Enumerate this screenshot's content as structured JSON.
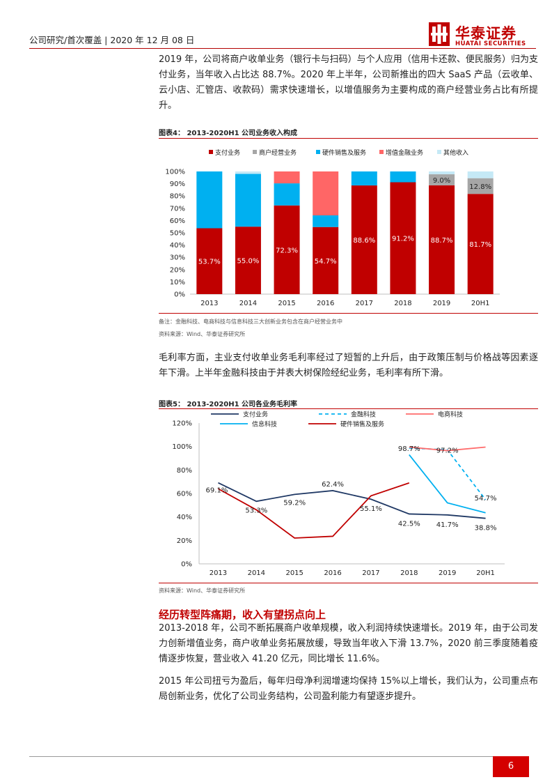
{
  "header": {
    "text": "公司研究/首次覆盖 | 2020 年 12 月 08 日",
    "logo_cn": "华泰证券",
    "logo_en": "HUATAI SECURITIES"
  },
  "paragraphs": {
    "p1": "2019 年，公司将商户收单业务（银行卡与扫码）与个人应用（信用卡还款、便民服务）归为支付业务，当年收入占比达 88.7%。2020 年上半年，公司新推出的四大 SaaS 产品（云收单、云小店、汇管店、收款码）需求快速增长，以增值服务为主要构成的商户经营业务占比有所提升。",
    "p2": "毛利率方面，主业支付收单业务毛利率经过了短暂的上升后，由于政策压制与价格战等因素逐年下滑。上半年金融科技由于并表大树保险经纪业务，毛利率有所下滑。",
    "section_title": "经历转型阵痛期，收入有望拐点向上",
    "p3": "2013-2018 年，公司不断拓展商户收单规模，收入利润持续快速增长。2019 年，由于公司发力创新增值业务，商户收单业务拓展放缓，导致当年收入下滑 13.7%，2020 前三季度随着疫情逐步恢复，营业收入 41.20 亿元，同比增长 11.6%。",
    "p4": "2015 年公司扭亏为盈后，每年归母净利润增速均保持 15%以上增长，我们认为，公司重点布局创新业务，优化了公司业务结构，公司盈利能力有望逐步提升。"
  },
  "figure4": {
    "title": "图表4：  2013-2020H1 公司业务收入构成",
    "note": "备注：金融科技、电商科技与信息科技三大创新业务包含在商户经营业务中",
    "source": "资料来源：Wind、华泰证券研究所"
  },
  "figure5": {
    "title": "图表5：  2013-2020H1 公司各业务毛利率",
    "source": "资料来源：Wind、华泰证券研究所"
  },
  "chart_data": [
    {
      "type": "bar",
      "stacked": true,
      "categories": [
        "2013",
        "2014",
        "2015",
        "2016",
        "2017",
        "2018",
        "2019",
        "20H1"
      ],
      "ylim": [
        0,
        100
      ],
      "yticks": [
        "0%",
        "10%",
        "20%",
        "30%",
        "40%",
        "50%",
        "60%",
        "70%",
        "80%",
        "90%",
        "100%"
      ],
      "legend_position": "top",
      "series": [
        {
          "name": "支付业务",
          "color": "#c00000",
          "values": [
            53.7,
            55.0,
            72.3,
            54.7,
            88.6,
            91.2,
            88.7,
            81.7
          ],
          "labels": [
            "53.7%",
            "55.0%",
            "72.3%",
            "54.7%",
            "88.6%",
            "91.2%",
            "88.7%",
            "81.7%"
          ]
        },
        {
          "name": "商户经营业务",
          "color": "#a6a6a6",
          "values": [
            0,
            0,
            0,
            0,
            0,
            0,
            9.0,
            12.8
          ],
          "labels": [
            "",
            "",
            "",
            "",
            "",
            "",
            "9.0%",
            "12.8%"
          ]
        },
        {
          "name": "硬件销售及服务",
          "color": "#00b0f0",
          "values": [
            46.3,
            43.0,
            18.0,
            9.5,
            11.4,
            8.8,
            0,
            0
          ]
        },
        {
          "name": "增值金融业务",
          "color": "#ff6666",
          "values": [
            0,
            0,
            9.7,
            35.8,
            0,
            0,
            0,
            0
          ]
        },
        {
          "name": "其他收入",
          "color": "#c5e9f6",
          "values": [
            0,
            2.0,
            0,
            0,
            0,
            0,
            2.3,
            5.5
          ]
        }
      ]
    },
    {
      "type": "line",
      "categories": [
        "2013",
        "2014",
        "2015",
        "2016",
        "2017",
        "2018",
        "2019",
        "20H1"
      ],
      "ylim": [
        0,
        120
      ],
      "yticks": [
        "0%",
        "20%",
        "40%",
        "60%",
        "80%",
        "100%",
        "120%"
      ],
      "legend_position": "top",
      "series": [
        {
          "name": "支付业务",
          "color": "#1f3864",
          "dash": false,
          "values": [
            69.1,
            53.3,
            59.2,
            62.4,
            55.1,
            42.5,
            41.7,
            38.8
          ],
          "labels": [
            "69.1%",
            "53.3%",
            "59.2%",
            "62.4%",
            "55.1%",
            "42.5%",
            "41.7%",
            "38.8%"
          ]
        },
        {
          "name": "金融科技",
          "color": "#00b0f0",
          "dash": true,
          "values": [
            null,
            null,
            null,
            null,
            null,
            98.7,
            97.2,
            54.7
          ],
          "labels": [
            "",
            "",
            "",
            "",
            "",
            "98.7%",
            "97.2%",
            "54.7%"
          ]
        },
        {
          "name": "电商科技",
          "color": "#ff6b6b",
          "dash": false,
          "values": [
            null,
            null,
            null,
            null,
            null,
            99.5,
            96.5,
            99.5
          ]
        },
        {
          "name": "信息科技",
          "color": "#00b0f0",
          "dash": false,
          "values": [
            null,
            null,
            null,
            null,
            null,
            93,
            52,
            43.5
          ]
        },
        {
          "name": "硬件销售及服务",
          "color": "#c00000",
          "dash": false,
          "values": [
            64,
            46,
            22,
            23.5,
            58,
            69,
            null,
            null
          ]
        }
      ]
    }
  ],
  "footer": {
    "page": "6"
  }
}
